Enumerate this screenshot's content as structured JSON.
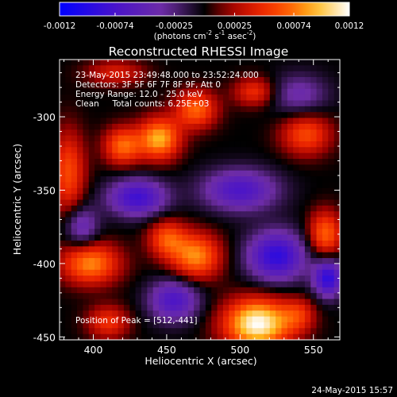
{
  "chart_data": {
    "type": "heatmap",
    "title": "Reconstructed RHESSI Image",
    "xlabel": "Heliocentric X (arcsec)",
    "ylabel": "Heliocentric Y (arcsec)",
    "xlim": [
      377,
      568
    ],
    "ylim": [
      -452,
      -261
    ],
    "x_ticks": [
      "400",
      "450",
      "500",
      "550"
    ],
    "x_tick_values": [
      400,
      450,
      500,
      550
    ],
    "y_ticks": [
      "-300",
      "-350",
      "-400",
      "-450"
    ],
    "y_tick_values": [
      -300,
      -350,
      -400,
      -450
    ],
    "colorbar": {
      "range": [
        -0.0012,
        0.0012
      ],
      "ticks": [
        "-0.0012",
        "-0.00074",
        "-0.00025",
        "0.00025",
        "0.00074",
        "0.0012"
      ],
      "tick_values": [
        -0.0012,
        -0.00074,
        -0.00025,
        0.00025,
        0.00074,
        0.0012
      ],
      "label_parts": {
        "base": "(photons cm",
        "exp1": "-2",
        "mid1": " s",
        "exp2": "-1",
        "mid2": " asec",
        "exp3": "-2",
        "end": ")"
      }
    },
    "annotations": [
      "23-May-2015 23:49:48.000 to 23:52:24.000",
      "Detectors: 3F 5F 6F 7F 8F 9F, Att 0",
      "Energy Range: 12.0 - 25.0 keV",
      "Clean     Total counts: 6.25E+03"
    ],
    "peak_label": "Position of Peak = [512,-441]",
    "peak": [
      512,
      -441
    ],
    "grid": false,
    "sources": [
      {
        "x": 512,
        "y": -441,
        "value": 0.0012,
        "sx": 16,
        "sy": 12
      },
      {
        "x": 470,
        "y": -395,
        "value": 0.0008,
        "sx": 12,
        "sy": 11
      },
      {
        "x": 450,
        "y": -383,
        "value": 0.0006,
        "sx": 9,
        "sy": 9
      },
      {
        "x": 398,
        "y": -400,
        "value": 0.0008,
        "sx": 14,
        "sy": 10
      },
      {
        "x": 410,
        "y": -440,
        "value": 0.0005,
        "sx": 10,
        "sy": 8
      },
      {
        "x": 545,
        "y": -312,
        "value": 0.0006,
        "sx": 12,
        "sy": 10
      },
      {
        "x": 558,
        "y": -380,
        "value": 0.0007,
        "sx": 8,
        "sy": 11
      },
      {
        "x": 540,
        "y": -435,
        "value": 0.0004,
        "sx": 8,
        "sy": 8
      },
      {
        "x": 383,
        "y": -338,
        "value": 0.0006,
        "sx": 8,
        "sy": 20
      },
      {
        "x": 445,
        "y": -315,
        "value": 0.0009,
        "sx": 10,
        "sy": 10
      },
      {
        "x": 420,
        "y": -320,
        "value": 0.0007,
        "sx": 9,
        "sy": 9
      },
      {
        "x": 470,
        "y": -295,
        "value": 0.0007,
        "sx": 10,
        "sy": 9
      },
      {
        "x": 510,
        "y": -283,
        "value": 0.0005,
        "sx": 10,
        "sy": 7
      },
      {
        "x": 415,
        "y": -270,
        "value": 0.0004,
        "sx": 14,
        "sy": 6
      },
      {
        "x": 500,
        "y": -350,
        "value": -0.0007,
        "sx": 18,
        "sy": 10
      },
      {
        "x": 430,
        "y": -355,
        "value": -0.0008,
        "sx": 14,
        "sy": 9
      },
      {
        "x": 525,
        "y": -395,
        "value": -0.0009,
        "sx": 14,
        "sy": 12
      },
      {
        "x": 455,
        "y": -425,
        "value": -0.0007,
        "sx": 12,
        "sy": 10
      },
      {
        "x": 560,
        "y": -410,
        "value": -0.0009,
        "sx": 7,
        "sy": 9
      },
      {
        "x": 540,
        "y": -285,
        "value": -0.0004,
        "sx": 14,
        "sy": 10
      },
      {
        "x": 392,
        "y": -375,
        "value": -0.0005,
        "sx": 8,
        "sy": 10
      }
    ]
  },
  "footer": {
    "timestamp": "24-May-2015 15:57"
  }
}
